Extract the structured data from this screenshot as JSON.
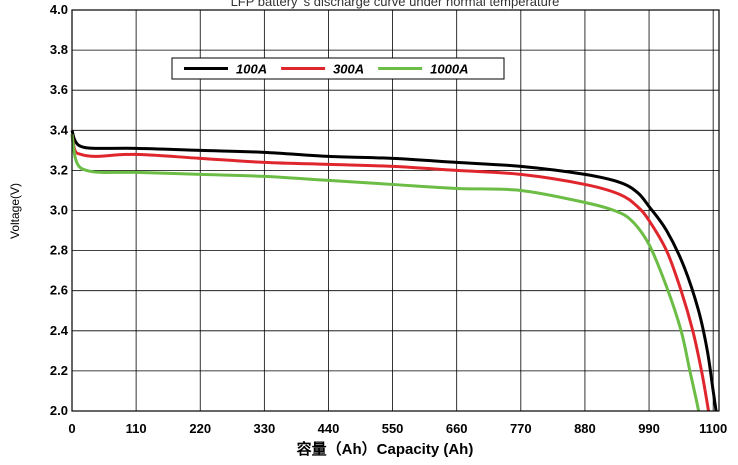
{
  "chart_data": {
    "type": "line",
    "title": "LFP battery 's discharge curve under normal temperature",
    "xlabel": "容量（Ah）Capacity (Ah)",
    "ylabel": "Voltage(V)",
    "xlim": [
      0,
      1110
    ],
    "ylim": [
      2.0,
      4.0
    ],
    "x_ticks": [
      "0",
      "110",
      "220",
      "330",
      "440",
      "550",
      "660",
      "770",
      "880",
      "990",
      "1100"
    ],
    "y_ticks": [
      "2.0",
      "2.2",
      "2.4",
      "2.6",
      "2.8",
      "3.0",
      "3.2",
      "3.4",
      "3.6",
      "3.8",
      "4.0"
    ],
    "grid": true,
    "legend_position": "top-left",
    "series": [
      {
        "name": "100A",
        "color": "#000000",
        "x": [
          0,
          5,
          15,
          40,
          110,
          220,
          330,
          440,
          550,
          660,
          770,
          880,
          940,
          970,
          990,
          1020,
          1050,
          1075,
          1090,
          1100,
          1105
        ],
        "y": [
          3.4,
          3.35,
          3.32,
          3.31,
          3.31,
          3.3,
          3.29,
          3.27,
          3.26,
          3.24,
          3.22,
          3.18,
          3.14,
          3.09,
          3.02,
          2.9,
          2.72,
          2.5,
          2.3,
          2.1,
          2.0
        ]
      },
      {
        "name": "300A",
        "color": "#e0262d",
        "x": [
          0,
          5,
          15,
          40,
          110,
          220,
          330,
          440,
          550,
          660,
          770,
          880,
          940,
          970,
          990,
          1020,
          1045,
          1065,
          1080,
          1088,
          1092
        ],
        "y": [
          3.38,
          3.3,
          3.28,
          3.27,
          3.28,
          3.26,
          3.24,
          3.23,
          3.22,
          3.2,
          3.18,
          3.13,
          3.08,
          3.02,
          2.95,
          2.8,
          2.6,
          2.4,
          2.2,
          2.07,
          2.0
        ]
      },
      {
        "name": "1000A",
        "color": "#6cbd45",
        "x": [
          0,
          5,
          12,
          25,
          50,
          110,
          220,
          330,
          440,
          550,
          660,
          770,
          880,
          930,
          960,
          990,
          1020,
          1045,
          1060,
          1070,
          1075
        ],
        "y": [
          3.38,
          3.27,
          3.22,
          3.2,
          3.19,
          3.19,
          3.18,
          3.17,
          3.15,
          3.13,
          3.11,
          3.1,
          3.04,
          3.0,
          2.95,
          2.83,
          2.62,
          2.4,
          2.2,
          2.07,
          2.0
        ]
      }
    ]
  }
}
